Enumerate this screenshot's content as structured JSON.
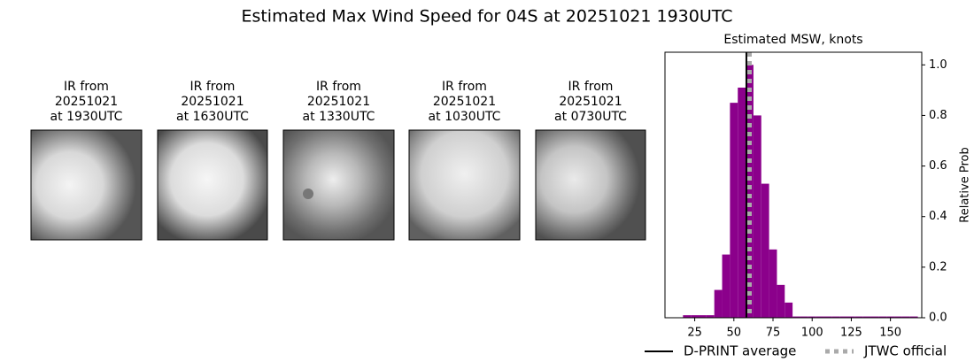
{
  "title": "Estimated Max Wind Speed for 04S at 20251021 1930UTC",
  "images": [
    {
      "lines": [
        "IR from",
        "20251021",
        "at 1930UTC"
      ]
    },
    {
      "lines": [
        "IR from",
        "20251021",
        "at 1630UTC"
      ]
    },
    {
      "lines": [
        "IR from",
        "20251021",
        "at 1330UTC"
      ]
    },
    {
      "lines": [
        "IR from",
        "20251021",
        "at 1030UTC"
      ]
    },
    {
      "lines": [
        "IR from",
        "20251021",
        "at 0730UTC"
      ]
    }
  ],
  "chart_data": {
    "type": "histogram",
    "title": "Estimated MSW, knots",
    "ylabel": "Relative Prob",
    "color": "#8b008b",
    "bins": [
      17.5,
      22.5,
      27.5,
      32.5,
      37.5,
      42.5,
      47.5,
      52.5,
      57.5,
      62.5,
      67.5,
      72.5,
      77.5,
      82.5,
      87.5,
      92.5,
      97.5,
      102.5,
      107.5,
      112.5,
      117.5,
      122.5,
      127.5,
      132.5,
      137.5,
      142.5,
      147.5,
      152.5,
      157.5,
      162.5,
      167.5
    ],
    "values": [
      0.01,
      0.01,
      0.01,
      0.01,
      0.11,
      0.25,
      0.85,
      0.91,
      1.0,
      0.8,
      0.53,
      0.27,
      0.13,
      0.06,
      0.005,
      0.005,
      0.005,
      0.005,
      0.005,
      0.005,
      0.005,
      0.005,
      0.005,
      0.005,
      0.005,
      0.005,
      0.005,
      0.005,
      0.005,
      0.005
    ],
    "xlim": [
      6,
      170
    ],
    "ylim": [
      0,
      1.05
    ],
    "xticks": [
      25,
      50,
      75,
      100,
      125,
      150
    ],
    "yticks": [
      {
        "value": 0,
        "label": "0.0"
      },
      0.2,
      0.4,
      0.6,
      0.8,
      {
        "value": 1,
        "label": "1.0"
      }
    ],
    "lines": [
      {
        "name": "D-PRINT average",
        "value": 58,
        "color": "#000000",
        "dashed": false
      },
      {
        "name": "JTWC official",
        "value": 60,
        "color": "#aaaaaa",
        "dashed": true
      }
    ]
  }
}
